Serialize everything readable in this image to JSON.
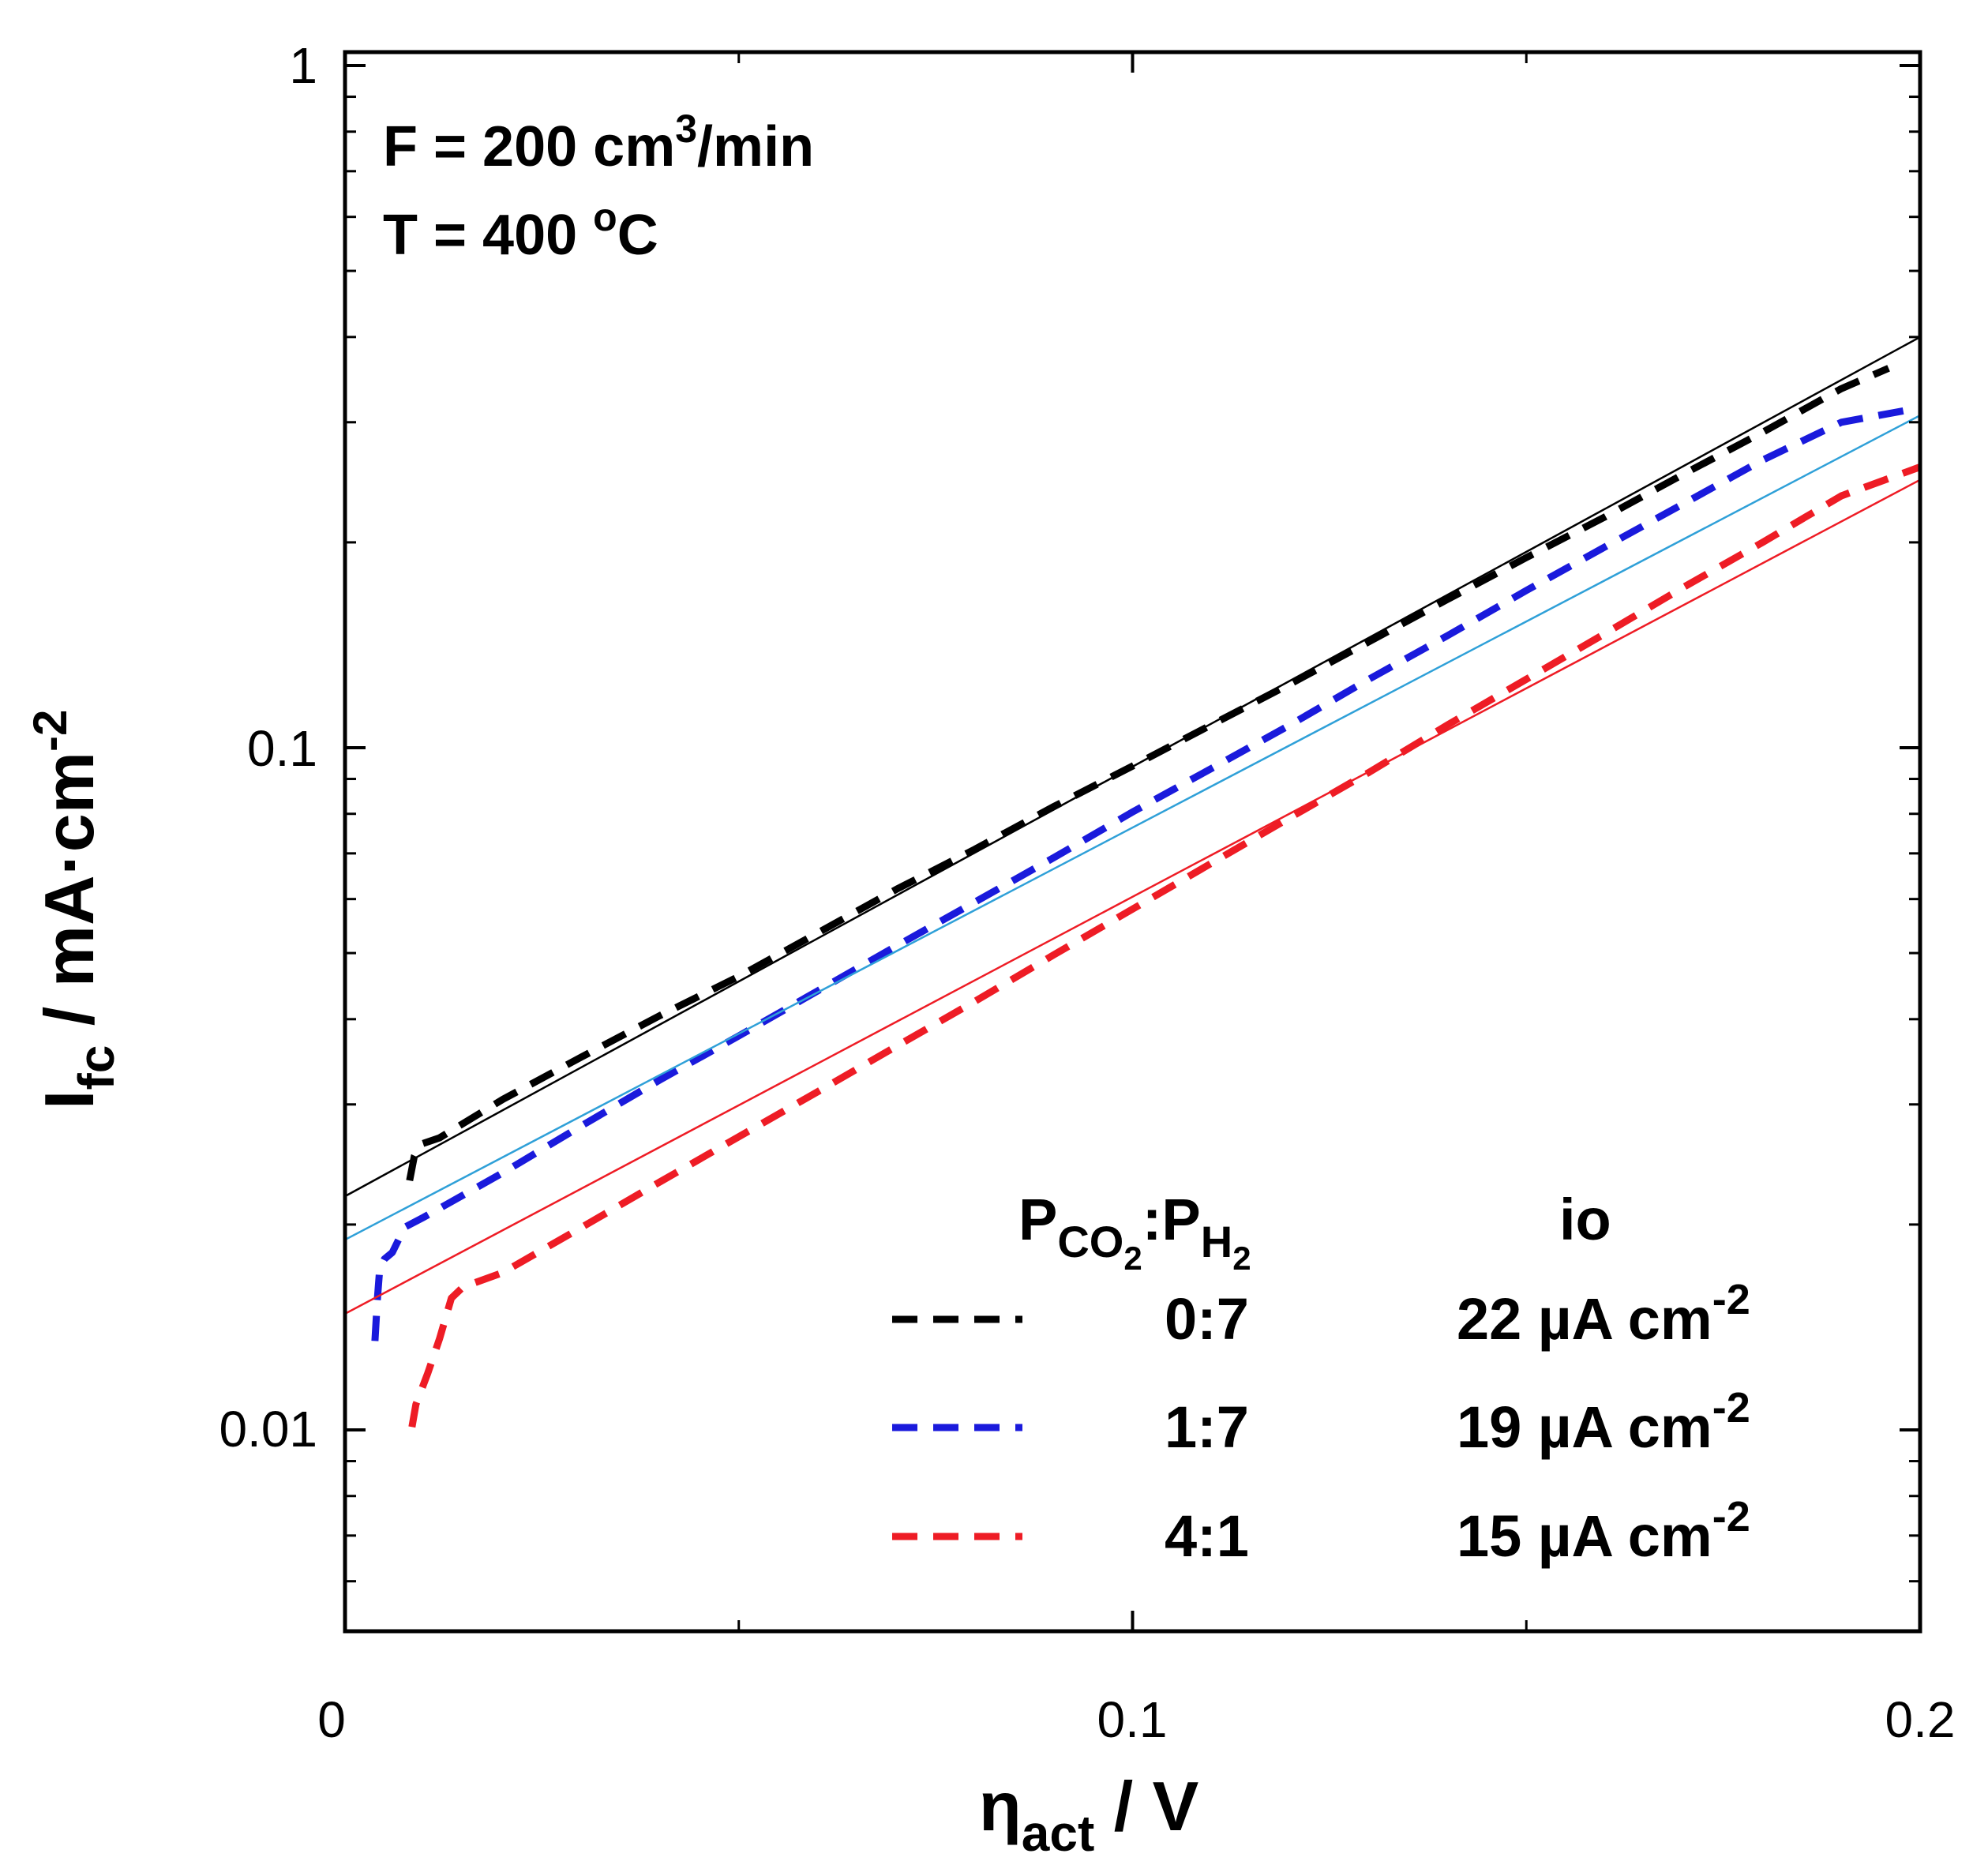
{
  "chart_data": {
    "type": "line",
    "x_scale": "linear",
    "y_scale": "log",
    "xlim": [
      0,
      0.2
    ],
    "ylim": [
      0.006,
      1
    ],
    "x_ticks": [
      0,
      0.1,
      0.2
    ],
    "x_tick_labels": [
      "0",
      "0.1",
      "0.2"
    ],
    "y_ticks": [
      0.01,
      0.1,
      1
    ],
    "y_tick_labels": [
      "0.01",
      "0.1",
      "1"
    ],
    "xlabel": {
      "main": "η",
      "sub": "act",
      "rest": " / V"
    },
    "ylabel": {
      "main": "I",
      "sub": "fc",
      "rest": " / mA·cm",
      "sup": "-2"
    },
    "annotations": [
      {
        "id": "flow",
        "prefix": "F = 200 cm",
        "sup": "3",
        "suffix": "/min"
      },
      {
        "id": "temp",
        "prefix": "T = 400 ",
        "sup": "o",
        "suffix": "C"
      }
    ],
    "legend": {
      "header_ratio": {
        "p1": "P",
        "p1_sub": "CO",
        "p1_sub2": "2",
        "sep": ":",
        "p2": "P",
        "p2_sub": "H",
        "p2_sub2": "2"
      },
      "header_io": "io",
      "entries": [
        {
          "ratio": "0:7",
          "io": "22 µA cm",
          "io_sup": "-2",
          "color": "#000000"
        },
        {
          "ratio": "1:7",
          "io": "19 µA cm",
          "io_sup": "-2",
          "color": "#1a1adc"
        },
        {
          "ratio": "4:1",
          "io": "15 µA cm",
          "io_sup": "-2",
          "color": "#ee1c25"
        }
      ]
    },
    "series": [
      {
        "name": "0:7",
        "style": "dashed",
        "color": "#000000",
        "x": [
          0.0082,
          0.0088,
          0.0095,
          0.012,
          0.02,
          0.03,
          0.04,
          0.05,
          0.06,
          0.07,
          0.08,
          0.09,
          0.1,
          0.11,
          0.12,
          0.13,
          0.14,
          0.15,
          0.16,
          0.17,
          0.18,
          0.19,
          0.196
        ],
        "y": [
          0.0232,
          0.0252,
          0.0262,
          0.0268,
          0.0305,
          0.0352,
          0.0405,
          0.0462,
          0.0535,
          0.062,
          0.071,
          0.082,
          0.094,
          0.108,
          0.124,
          0.143,
          0.165,
          0.19,
          0.218,
          0.252,
          0.29,
          0.336,
          0.36
        ]
      },
      {
        "name": "1:7",
        "style": "dashed",
        "color": "#1a1adc",
        "x": [
          0.0038,
          0.0041,
          0.0044,
          0.005,
          0.006,
          0.0068,
          0.0075,
          0.01,
          0.02,
          0.03,
          0.04,
          0.05,
          0.06,
          0.07,
          0.08,
          0.09,
          0.1,
          0.11,
          0.12,
          0.13,
          0.14,
          0.15,
          0.16,
          0.17,
          0.18,
          0.19,
          0.2
        ],
        "y": [
          0.0135,
          0.0155,
          0.0172,
          0.0178,
          0.0182,
          0.019,
          0.0198,
          0.0205,
          0.0238,
          0.0279,
          0.0326,
          0.0378,
          0.044,
          0.0512,
          0.0594,
          0.069,
          0.0805,
          0.0932,
          0.108,
          0.126,
          0.146,
          0.17,
          0.197,
          0.228,
          0.264,
          0.3,
          0.315
        ]
      },
      {
        "name": "4:1",
        "style": "dashed",
        "color": "#ee1c25",
        "x": [
          0.0085,
          0.009,
          0.0105,
          0.012,
          0.0135,
          0.015,
          0.02,
          0.03,
          0.04,
          0.05,
          0.06,
          0.07,
          0.08,
          0.09,
          0.1,
          0.11,
          0.12,
          0.13,
          0.14,
          0.15,
          0.16,
          0.17,
          0.18,
          0.19,
          0.2
        ],
        "y": [
          0.0101,
          0.0109,
          0.0121,
          0.0136,
          0.0156,
          0.0162,
          0.017,
          0.0198,
          0.0231,
          0.0269,
          0.0313,
          0.0365,
          0.0425,
          0.0497,
          0.058,
          0.0677,
          0.079,
          0.092,
          0.108,
          0.126,
          0.147,
          0.172,
          0.2,
          0.234,
          0.258
        ]
      },
      {
        "name": "0:7 fit",
        "style": "solid",
        "color": "#000000",
        "x": [
          0,
          0.2
        ],
        "y": [
          0.022,
          0.4
        ]
      },
      {
        "name": "1:7 fit",
        "style": "solid",
        "color": "#2fa0d8",
        "x": [
          0,
          0.2
        ],
        "y": [
          0.019,
          0.307
        ]
      },
      {
        "name": "4:1 fit",
        "style": "solid",
        "color": "#ee1c25",
        "x": [
          0,
          0.2
        ],
        "y": [
          0.0148,
          0.247
        ]
      }
    ]
  }
}
